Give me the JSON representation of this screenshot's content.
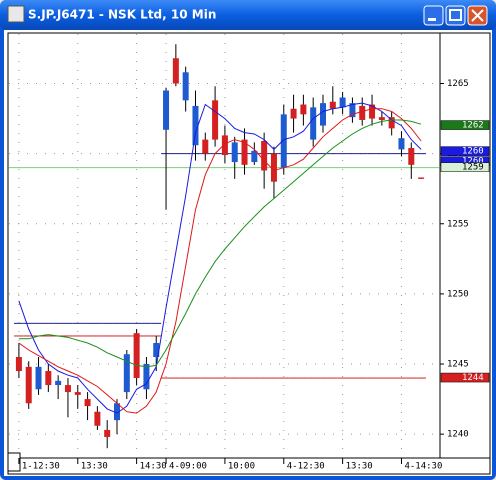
{
  "chart_data": {
    "type": "candlestick",
    "title": "S.JP.J6471 - NSK Ltd, 10 Min",
    "categories": [
      "1-12:30",
      null,
      null,
      null,
      null,
      null,
      "13:30",
      null,
      null,
      null,
      null,
      null,
      "14:30",
      null,
      null,
      "4-09:00",
      null,
      null,
      null,
      null,
      null,
      "10:00",
      null,
      null,
      null,
      null,
      null,
      "4-12:30",
      null,
      null,
      null,
      null,
      null,
      "13:30",
      null,
      null,
      null,
      null,
      null,
      "4-14:30",
      null,
      null
    ],
    "open": [
      1245.5,
      1244.8,
      1243.2,
      1244.5,
      1243.5,
      1243.5,
      1243,
      1242.5,
      1241.6,
      1240.3,
      1241,
      1243,
      1247.2,
      1243.2,
      1245.5,
      1261.7,
      1266.8,
      1263.8,
      1260.6,
      1261,
      1263.8,
      1261.3,
      1259.4,
      1261,
      1259.4,
      1260.9,
      1260,
      1259,
      1263.2,
      1263.5,
      1261,
      1262,
      1263.7,
      1263.3,
      1262.6,
      1263.4,
      1263.5,
      1262.6,
      1262.6,
      1260.3,
      1260.4,
      1258.3
    ],
    "high": [
      1246.5,
      1245.2,
      1245.5,
      1245,
      1244.2,
      1244,
      1243.5,
      1243,
      1242,
      1241,
      1242.5,
      1246,
      1247.5,
      1245.5,
      1247,
      1264.7,
      1267.8,
      1266.2,
      1264.5,
      1261.5,
      1264.8,
      1262,
      1261.2,
      1261.8,
      1260.8,
      1261.5,
      1260.5,
      1263.5,
      1264.2,
      1264.2,
      1264,
      1264.2,
      1264.8,
      1264.4,
      1264,
      1264,
      1264.2,
      1263,
      1263,
      1261.6,
      1260.8,
      1258.3
    ],
    "low": [
      1244,
      1241.8,
      1242.8,
      1243,
      1242.5,
      1241.2,
      1241.8,
      1241,
      1240.3,
      1239,
      1240,
      1242.5,
      1243.5,
      1242.5,
      1244.5,
      1256,
      1264.8,
      1263,
      1259.5,
      1259.5,
      1260.5,
      1259.3,
      1258.2,
      1258.5,
      1259.2,
      1257.5,
      1256.8,
      1258.5,
      1261.5,
      1262,
      1260.5,
      1261.5,
      1262.8,
      1262.8,
      1262.2,
      1262,
      1262,
      1262,
      1261.3,
      1259.8,
      1258.2,
      1258.2
    ],
    "close": [
      1244.5,
      1242.2,
      1244.8,
      1243.5,
      1243.8,
      1243,
      1242.8,
      1242,
      1240.6,
      1239.8,
      1242.2,
      1245.7,
      1244,
      1245,
      1246.5,
      1264.5,
      1265,
      1265.8,
      1263.4,
      1260,
      1261,
      1259.9,
      1260.8,
      1259.2,
      1260.2,
      1258.8,
      1258,
      1262.8,
      1262.5,
      1262.8,
      1263.3,
      1263.6,
      1263.2,
      1264,
      1263.6,
      1262.4,
      1262.5,
      1262.4,
      1261.8,
      1261.1,
      1259.2,
      1258.2
    ],
    "up_color": "#1e5ad2",
    "down_color": "#d42020",
    "series": [
      {
        "color": "#1a1ae0",
        "values": [
          1249.5,
          1247.5,
          1246,
          1245,
          1244.5,
          1244.2,
          1244,
          1243.2,
          1242.5,
          1241.8,
          1241.5,
          1242,
          1243.2,
          1243.6,
          1244.8,
          1249,
          1253,
          1257,
          1261.5,
          1263.5,
          1263,
          1262.5,
          1261.8,
          1261.5,
          1261.4,
          1261,
          1260.3,
          1261,
          1261.2,
          1261.6,
          1262.5,
          1263,
          1263.2,
          1263.3,
          1263.5,
          1263.6,
          1263.4,
          1263,
          1262.4,
          1262,
          1261,
          1260.3
        ]
      },
      {
        "color": "#e01818",
        "values": [
          1246.5,
          1246,
          1245.6,
          1245.2,
          1244.8,
          1244.5,
          1244.2,
          1243.8,
          1243.4,
          1242.8,
          1242.2,
          1241.6,
          1241.5,
          1242,
          1243,
          1245,
          1248,
          1252,
          1256,
          1258.5,
          1260,
          1260.7,
          1261,
          1260.8,
          1260.3,
          1259.5,
          1258.8,
          1259,
          1259.2,
          1259.6,
          1260.4,
          1261.2,
          1261.8,
          1262.4,
          1262.8,
          1263,
          1263.2,
          1263.2,
          1263,
          1262.5,
          1261.8,
          1260.9
        ]
      },
      {
        "color": "#1a901a",
        "values": [
          1246.8,
          1246.8,
          1247,
          1247.1,
          1247,
          1246.9,
          1246.7,
          1246.5,
          1246.2,
          1245.8,
          1245.5,
          1245.2,
          1244.9,
          1244.8,
          1244.9,
          1246,
          1247.3,
          1248.6,
          1250,
          1251.2,
          1252.3,
          1253.2,
          1254,
          1254.8,
          1255.5,
          1256.2,
          1256.8,
          1257.4,
          1258,
          1258.6,
          1259.2,
          1259.8,
          1260.4,
          1260.9,
          1261.4,
          1261.8,
          1262.1,
          1262.3,
          1262.4,
          1262.4,
          1262.3,
          1262.1
        ]
      }
    ],
    "levels": [
      {
        "color": "#20208a",
        "values": [
          1247.9,
          1247.9,
          1247.9,
          1247.9,
          1247.9,
          1247.9,
          1247.9,
          1247.9,
          1247.9,
          1247.9,
          1247.9,
          1247.9,
          1247.9,
          1247.9,
          1247.9,
          1260,
          1260,
          1260,
          1260,
          1260,
          1260,
          1260,
          1260,
          1260,
          1260,
          1260,
          1260,
          1260,
          1260,
          1260,
          1260,
          1260,
          1260,
          1260,
          1260,
          1260,
          1260,
          1260,
          1260,
          1260,
          1260,
          1260
        ]
      },
      {
        "color": "#d42020",
        "values": [
          1247,
          1247,
          1247,
          1247,
          1247,
          1247,
          1247,
          1247,
          1247,
          1247,
          1247,
          1247,
          1247,
          1247,
          1247,
          1244,
          1244,
          1244,
          1244,
          1244,
          1244,
          1244,
          1244,
          1244,
          1244,
          1244,
          1244,
          1244,
          1244,
          1244,
          1244,
          1244,
          1244,
          1244,
          1244,
          1244,
          1244,
          1244,
          1244,
          1244,
          1244,
          1244
        ]
      }
    ],
    "price_line": {
      "value": 1259,
      "color": "#7ccf7c"
    },
    "price_tags": [
      {
        "value": 1262,
        "color": "#1a7a1a",
        "text_color": "#ffffff"
      },
      {
        "value": 1260,
        "color": "#1a1ae0",
        "text_color": "#ffffff"
      },
      {
        "value": 1260,
        "color": "#1a1ae0",
        "text_color": "#ffffff"
      },
      {
        "value": 1259,
        "color": "#d8f0d8",
        "text_color": "#000000"
      },
      {
        "value": 1244,
        "color": "#d42020",
        "text_color": "#ffffff"
      }
    ],
    "ylim": [
      1238.3,
      1268.6
    ],
    "yticks": [
      1240,
      1245,
      1250,
      1255,
      1260,
      1265
    ],
    "grid": true
  }
}
